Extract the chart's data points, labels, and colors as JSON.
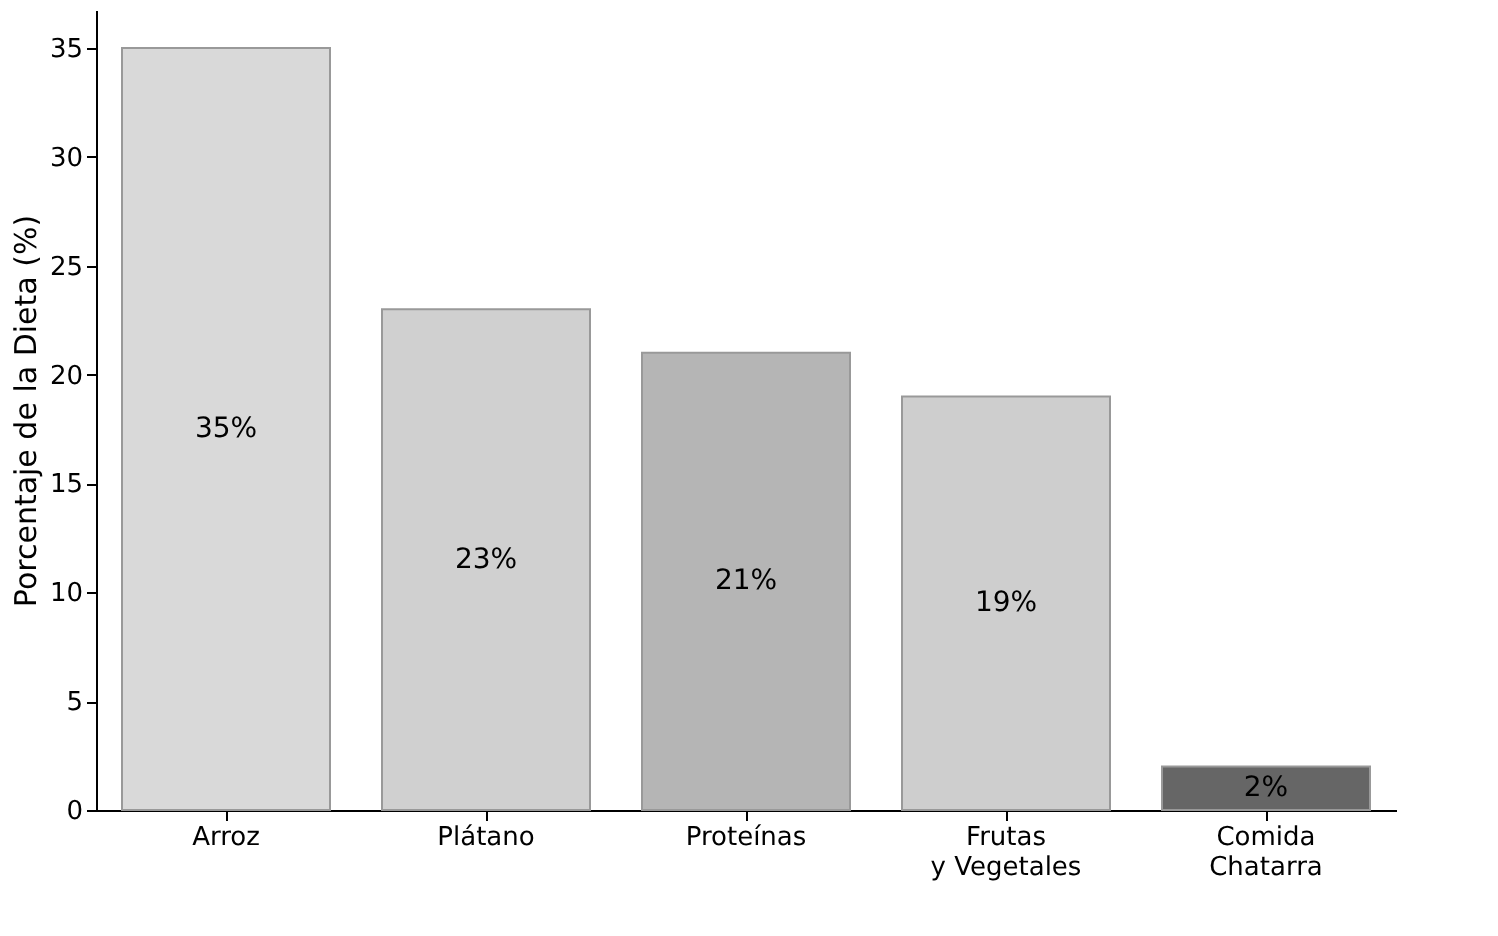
{
  "chart_data": {
    "type": "bar",
    "ylabel": "Porcentaje de la Dieta (%)",
    "categories": [
      "Arroz",
      "Plátano",
      "Proteínas",
      "Frutas\ny Vegetales",
      "Comida\nChatarra"
    ],
    "values": [
      35,
      23,
      21,
      19,
      2
    ],
    "colors": [
      "#d9d9d9",
      "#d0d0d0",
      "#b5b5b5",
      "#cecece",
      "#666666"
    ],
    "value_labels": [
      "35%",
      "23%",
      "21%",
      "19%",
      "2%"
    ],
    "ylim": [
      0,
      36.75
    ],
    "yticks": [
      0,
      5,
      10,
      15,
      20,
      25,
      30,
      35
    ],
    "grid": false
  }
}
